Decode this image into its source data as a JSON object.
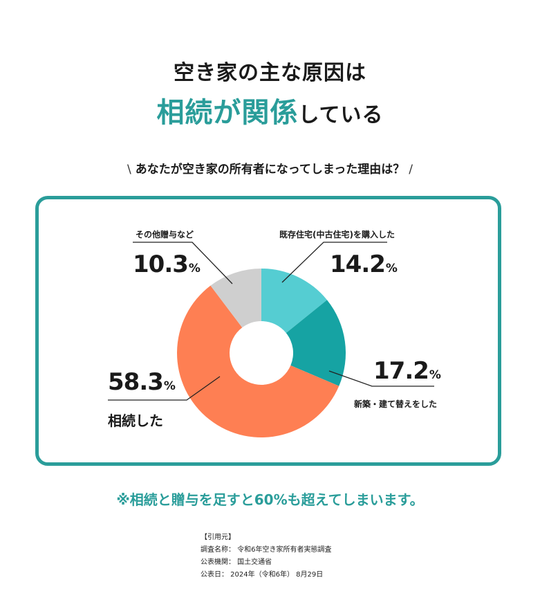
{
  "title": {
    "line1": "空き家の主な原因は",
    "accent": "相続が関係",
    "rest": "している"
  },
  "question": {
    "slash_left": "\\",
    "text": "あなたが空き家の所有者になってしまった理由は？",
    "slash_right": "/"
  },
  "chart_data": {
    "type": "pie",
    "donut": true,
    "unit": "%",
    "slices": [
      {
        "label": "既存住宅(中古住宅)を購入した",
        "value": 14.2,
        "color": "#55cdd2"
      },
      {
        "label": "新築・建て替えをした",
        "value": 17.2,
        "color": "#16a3a3"
      },
      {
        "label": "相続した",
        "value": 58.3,
        "color": "#fe7f53"
      },
      {
        "label": "その他贈与など",
        "value": 10.3,
        "color": "#cfcfcf"
      }
    ]
  },
  "labels": {
    "purchase": {
      "category": "既存住宅(中古住宅)を購入した",
      "value": "14.2",
      "pct": "%"
    },
    "newbuild": {
      "category": "新築・建て替えをした",
      "value": "17.2",
      "pct": "%"
    },
    "inherit": {
      "category": "相続した",
      "value": "58.3",
      "pct": "%"
    },
    "other": {
      "category": "その他贈与など",
      "value": "10.3",
      "pct": "%"
    }
  },
  "note": "※相続と贈与を足すと60%も超えてしまいます。",
  "source": {
    "heading": "【引用元】",
    "survey": "調査名称： 令和6年空き家所有者実態調査",
    "agency": "公表機関： 国土交通省",
    "date": "公表日： 2024年（令和6年） 8月29日"
  }
}
